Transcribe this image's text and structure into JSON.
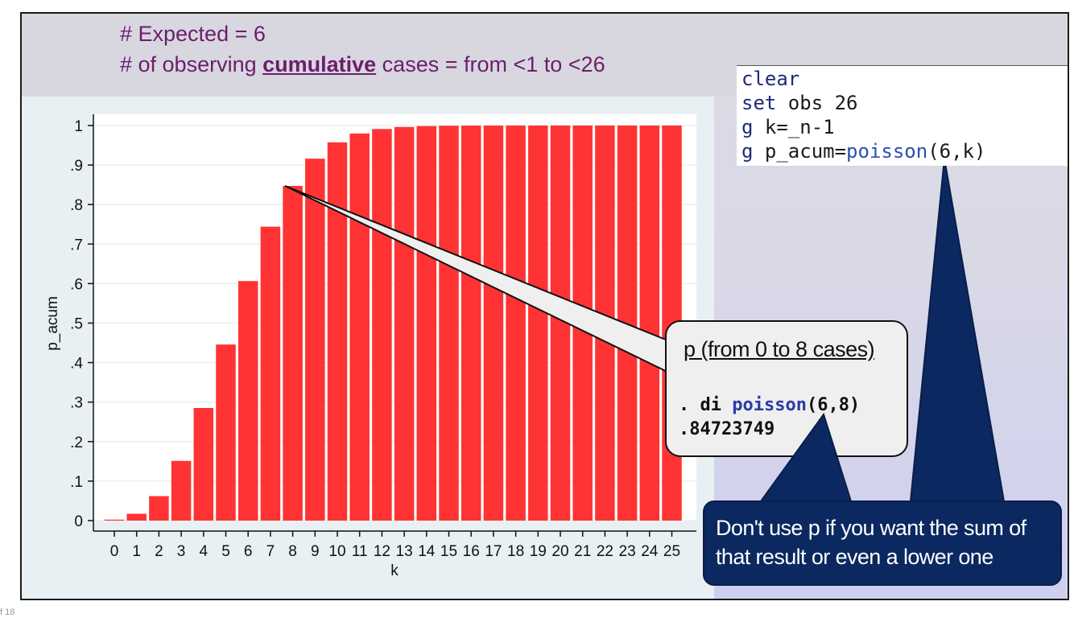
{
  "header": {
    "line1": "# Expected = 6",
    "line2_prefix": "# of observing ",
    "line2_emph": "cumulative",
    "line2_suffix": " cases = from <1 to <26"
  },
  "code": {
    "lines": [
      {
        "kw": "clear",
        "rest": ""
      },
      {
        "kw": "set",
        "rest": " obs 26"
      },
      {
        "kw": "g",
        "rest": " k=_n-1"
      },
      {
        "kw": "g",
        "rest": " p_acum=",
        "fn": "poisson",
        "tail": "(6,k)"
      }
    ]
  },
  "callout": {
    "heading": "p (from 0 to 8 cases)",
    "command_prefix": ". di ",
    "command_fn": "poisson",
    "command_args": "(6,8)",
    "result": ".84723749"
  },
  "note": {
    "text": "Don't use p if you want the sum of that result or even a lower one"
  },
  "footer": {
    "page": "f 18"
  },
  "chart_data": {
    "type": "bar",
    "x": [
      0,
      1,
      2,
      3,
      4,
      5,
      6,
      7,
      8,
      9,
      10,
      11,
      12,
      13,
      14,
      15,
      16,
      17,
      18,
      19,
      20,
      21,
      22,
      23,
      24,
      25
    ],
    "values": [
      0.0025,
      0.0174,
      0.062,
      0.1512,
      0.2851,
      0.4457,
      0.6063,
      0.744,
      0.8472,
      0.9161,
      0.9574,
      0.9799,
      0.9912,
      0.9964,
      0.9986,
      0.9995,
      0.9998,
      0.9999,
      1.0,
      1.0,
      1.0,
      1.0,
      1.0,
      1.0,
      1.0,
      1.0
    ],
    "xlabel": "k",
    "ylabel": "p_acum",
    "ylim": [
      0,
      1
    ],
    "yticks": [
      "0",
      ".1",
      ".2",
      ".3",
      ".4",
      ".5",
      ".6",
      ".7",
      ".8",
      ".9",
      "1"
    ],
    "xticks": [
      "0",
      "1",
      "2",
      "3",
      "4",
      "5",
      "6",
      "7",
      "8",
      "9",
      "10",
      "11",
      "12",
      "13",
      "14",
      "15",
      "16",
      "17",
      "18",
      "19",
      "20",
      "21",
      "22",
      "23",
      "24",
      "25"
    ],
    "bar_color": "#ff3333",
    "grid": true
  }
}
